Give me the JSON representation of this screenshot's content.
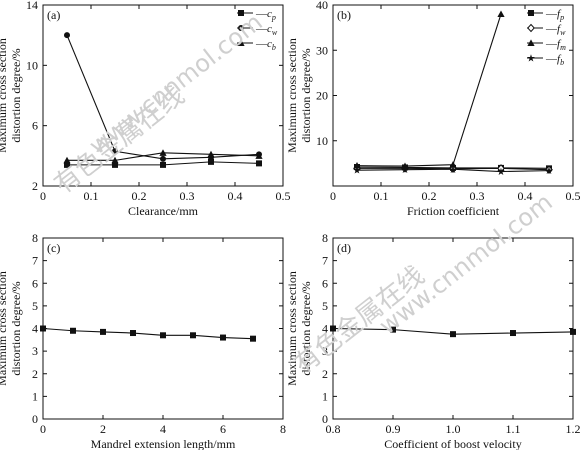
{
  "watermarks": {
    "cn": "有色金属在线",
    "url": "www.cnnmol.com"
  },
  "chart_data": [
    {
      "type": "line",
      "panel_label": "(a)",
      "xlabel": "Clearance/mm",
      "ylabel_lines": [
        "Maximum cross section",
        "distortion degree/%"
      ],
      "xlim": [
        0,
        0.5
      ],
      "ylim": [
        2,
        14
      ],
      "xticks": [
        0,
        0.1,
        0.2,
        0.3,
        0.4,
        0.5
      ],
      "yticks": [
        2,
        6,
        10,
        14
      ],
      "xtick_labels": [
        "0",
        "0.1",
        "0.2",
        "0.3",
        "0.4",
        "0.5"
      ],
      "ytick_labels": [
        "2",
        "6",
        "10",
        "14"
      ],
      "legend_position": "top-right",
      "series": [
        {
          "name": "c",
          "sub": "p",
          "marker": "square",
          "x": [
            0.05,
            0.15,
            0.25,
            0.35,
            0.45
          ],
          "y": [
            3.4,
            3.4,
            3.4,
            3.6,
            3.5
          ]
        },
        {
          "name": "c",
          "sub": "w",
          "marker": "circle",
          "x": [
            0.05,
            0.15,
            0.25,
            0.35,
            0.45
          ],
          "y": [
            12.0,
            4.3,
            3.8,
            3.9,
            4.1
          ]
        },
        {
          "name": "c",
          "sub": "b",
          "marker": "triangle",
          "x": [
            0.05,
            0.15,
            0.25,
            0.35,
            0.45
          ],
          "y": [
            3.7,
            3.7,
            4.2,
            4.1,
            4.0
          ]
        }
      ]
    },
    {
      "type": "line",
      "panel_label": "(b)",
      "xlabel": "Friction coefficient",
      "ylabel_lines": [
        "Maximum cross section",
        "distortion degree/%"
      ],
      "xlim": [
        0,
        0.5
      ],
      "ylim": [
        0,
        40
      ],
      "xticks": [
        0,
        0.1,
        0.2,
        0.3,
        0.4,
        0.5
      ],
      "yticks": [
        10,
        20,
        30,
        40
      ],
      "xtick_labels": [
        "0",
        "0.1",
        "0.2",
        "0.3",
        "0.4",
        "0.5"
      ],
      "ytick_labels": [
        "10",
        "20",
        "30",
        "40"
      ],
      "legend_position": "top-right",
      "series": [
        {
          "name": "f",
          "sub": "p",
          "marker": "square",
          "x": [
            0.05,
            0.15,
            0.25,
            0.35,
            0.45
          ],
          "y": [
            4.2,
            4.1,
            4.0,
            4.0,
            3.9
          ]
        },
        {
          "name": "f",
          "sub": "w",
          "marker": "diamond",
          "x": [
            0.05,
            0.15,
            0.25,
            0.35,
            0.45
          ],
          "y": [
            3.9,
            3.9,
            3.8,
            3.9,
            3.6
          ]
        },
        {
          "name": "f",
          "sub": "m",
          "marker": "triangle",
          "x": [
            0.05,
            0.15,
            0.25,
            0.35,
            0.45
          ],
          "y": [
            4.5,
            4.4,
            4.7,
            38.0,
            null
          ]
        },
        {
          "name": "f",
          "sub": "b",
          "marker": "star",
          "x": [
            0.05,
            0.15,
            0.25,
            0.35,
            0.45
          ],
          "y": [
            3.5,
            3.6,
            3.7,
            3.2,
            3.4
          ]
        }
      ]
    },
    {
      "type": "line",
      "panel_label": "(c)",
      "xlabel": "Mandrel extension length/mm",
      "ylabel_lines": [
        "Maximum cross section",
        "distortion degree/%"
      ],
      "xlim": [
        0,
        8
      ],
      "ylim": [
        0,
        8
      ],
      "xticks": [
        0,
        2,
        4,
        6,
        8
      ],
      "yticks": [
        0,
        1,
        2,
        3,
        4,
        5,
        6,
        7,
        8
      ],
      "xtick_labels": [
        "0",
        "2",
        "4",
        "6",
        "8"
      ],
      "ytick_labels": [
        "0",
        "1",
        "2",
        "3",
        "4",
        "5",
        "6",
        "7",
        "8"
      ],
      "series": [
        {
          "name": "",
          "marker": "square",
          "x": [
            0,
            1,
            2,
            3,
            4,
            5,
            6,
            7
          ],
          "y": [
            4.0,
            3.9,
            3.85,
            3.8,
            3.7,
            3.7,
            3.6,
            3.55
          ]
        }
      ]
    },
    {
      "type": "line",
      "panel_label": "(d)",
      "xlabel": "Coefficient of boost velocity",
      "ylabel_lines": [
        "Maximum cross section",
        "distortion degree/%"
      ],
      "xlim": [
        0.8,
        1.2
      ],
      "ylim": [
        0,
        8
      ],
      "xticks": [
        0.8,
        0.9,
        1.0,
        1.1,
        1.2
      ],
      "yticks": [
        0,
        1,
        2,
        3,
        4,
        5,
        6,
        7,
        8
      ],
      "xtick_labels": [
        "0.8",
        "0.9",
        "1.0",
        "1.1",
        "1.2"
      ],
      "ytick_labels": [
        "0",
        "1",
        "2",
        "3",
        "4",
        "5",
        "6",
        "7",
        "8"
      ],
      "series": [
        {
          "name": "",
          "marker": "square",
          "x": [
            0.8,
            0.9,
            1.0,
            1.1,
            1.2
          ],
          "y": [
            4.0,
            3.95,
            3.75,
            3.8,
            3.85
          ]
        }
      ]
    }
  ]
}
